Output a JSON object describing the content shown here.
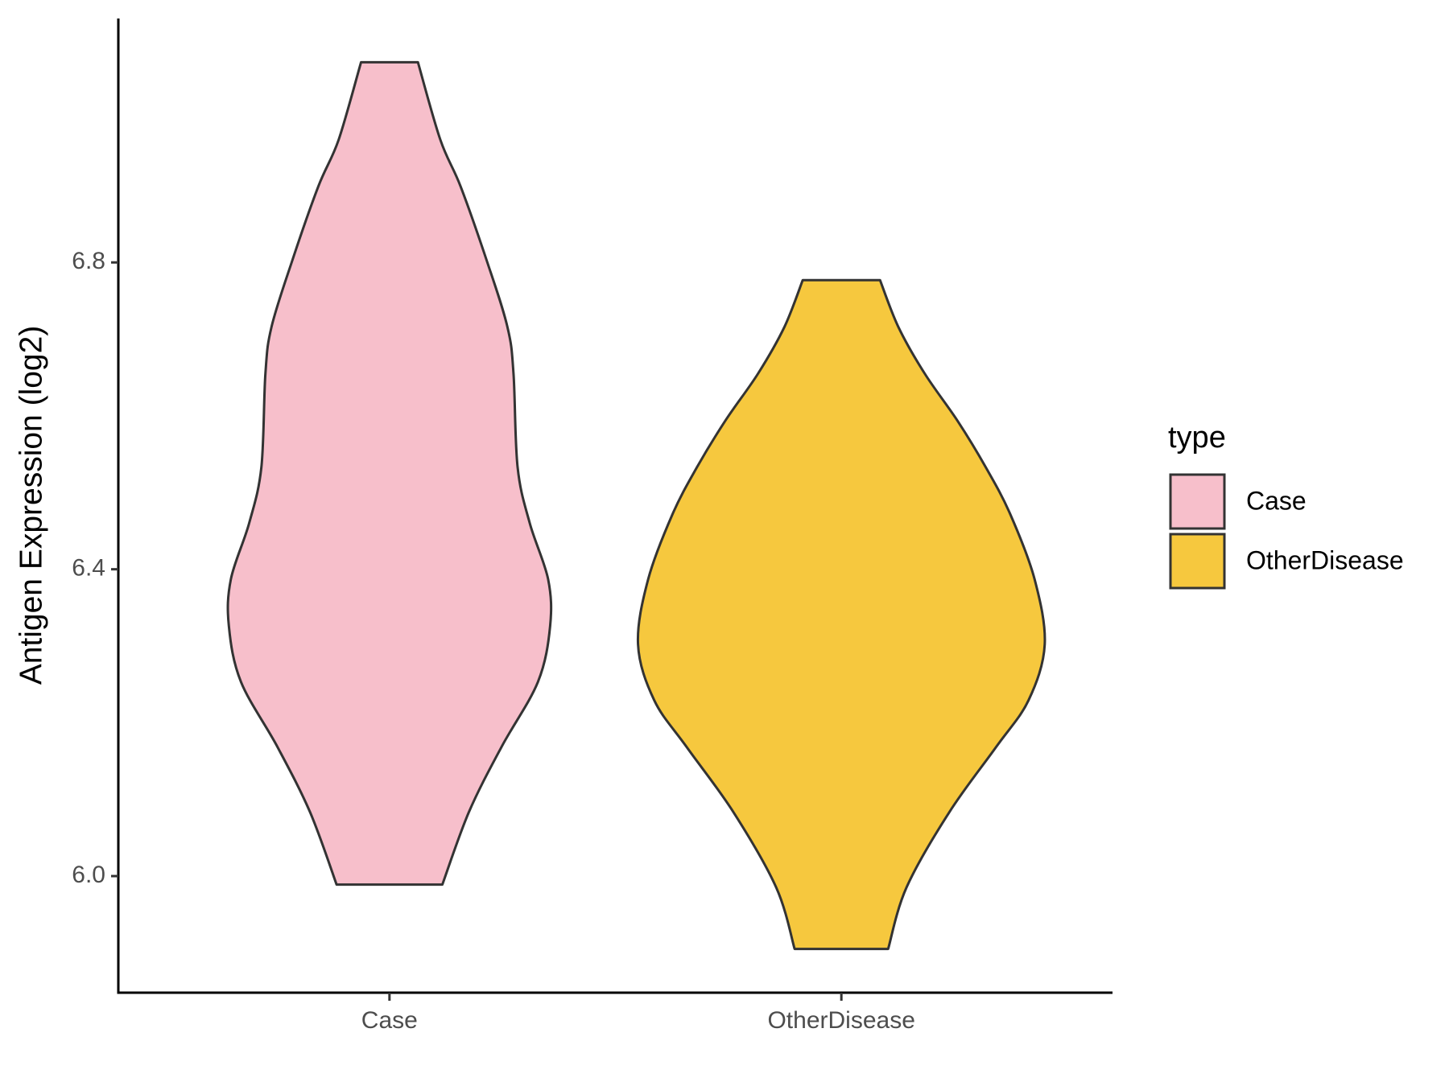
{
  "chart_data": {
    "type": "violin",
    "y_label": "Antigen Expression (log2)",
    "categories": [
      "Case",
      "OtherDisease"
    ],
    "ylim": [
      5.848,
      7.118
    ],
    "yticks": [
      {
        "value": 6.0,
        "label": "6.0"
      },
      {
        "value": 6.4,
        "label": "6.4"
      },
      {
        "value": 6.8,
        "label": "6.8"
      }
    ],
    "legend_title": "type",
    "legend_position": "right",
    "series": [
      {
        "name": "Case",
        "color": "#F7BFCB",
        "y": [
          7.061,
          6.96,
          6.899,
          6.801,
          6.716,
          6.655,
          6.533,
          6.46,
          6.387,
          6.326,
          6.253,
          6.168,
          6.083,
          5.989
        ],
        "density": [
          0.14,
          0.25,
          0.35,
          0.48,
          0.58,
          0.61,
          0.63,
          0.69,
          0.78,
          0.79,
          0.73,
          0.55,
          0.39,
          0.26
        ]
      },
      {
        "name": "OtherDisease",
        "color": "#F6C83E",
        "y": [
          6.777,
          6.716,
          6.655,
          6.594,
          6.533,
          6.472,
          6.387,
          6.302,
          6.229,
          6.168,
          6.083,
          5.985,
          5.905
        ],
        "density": [
          0.19,
          0.28,
          0.41,
          0.57,
          0.71,
          0.83,
          0.95,
          1.0,
          0.92,
          0.76,
          0.53,
          0.32,
          0.23
        ]
      }
    ]
  }
}
